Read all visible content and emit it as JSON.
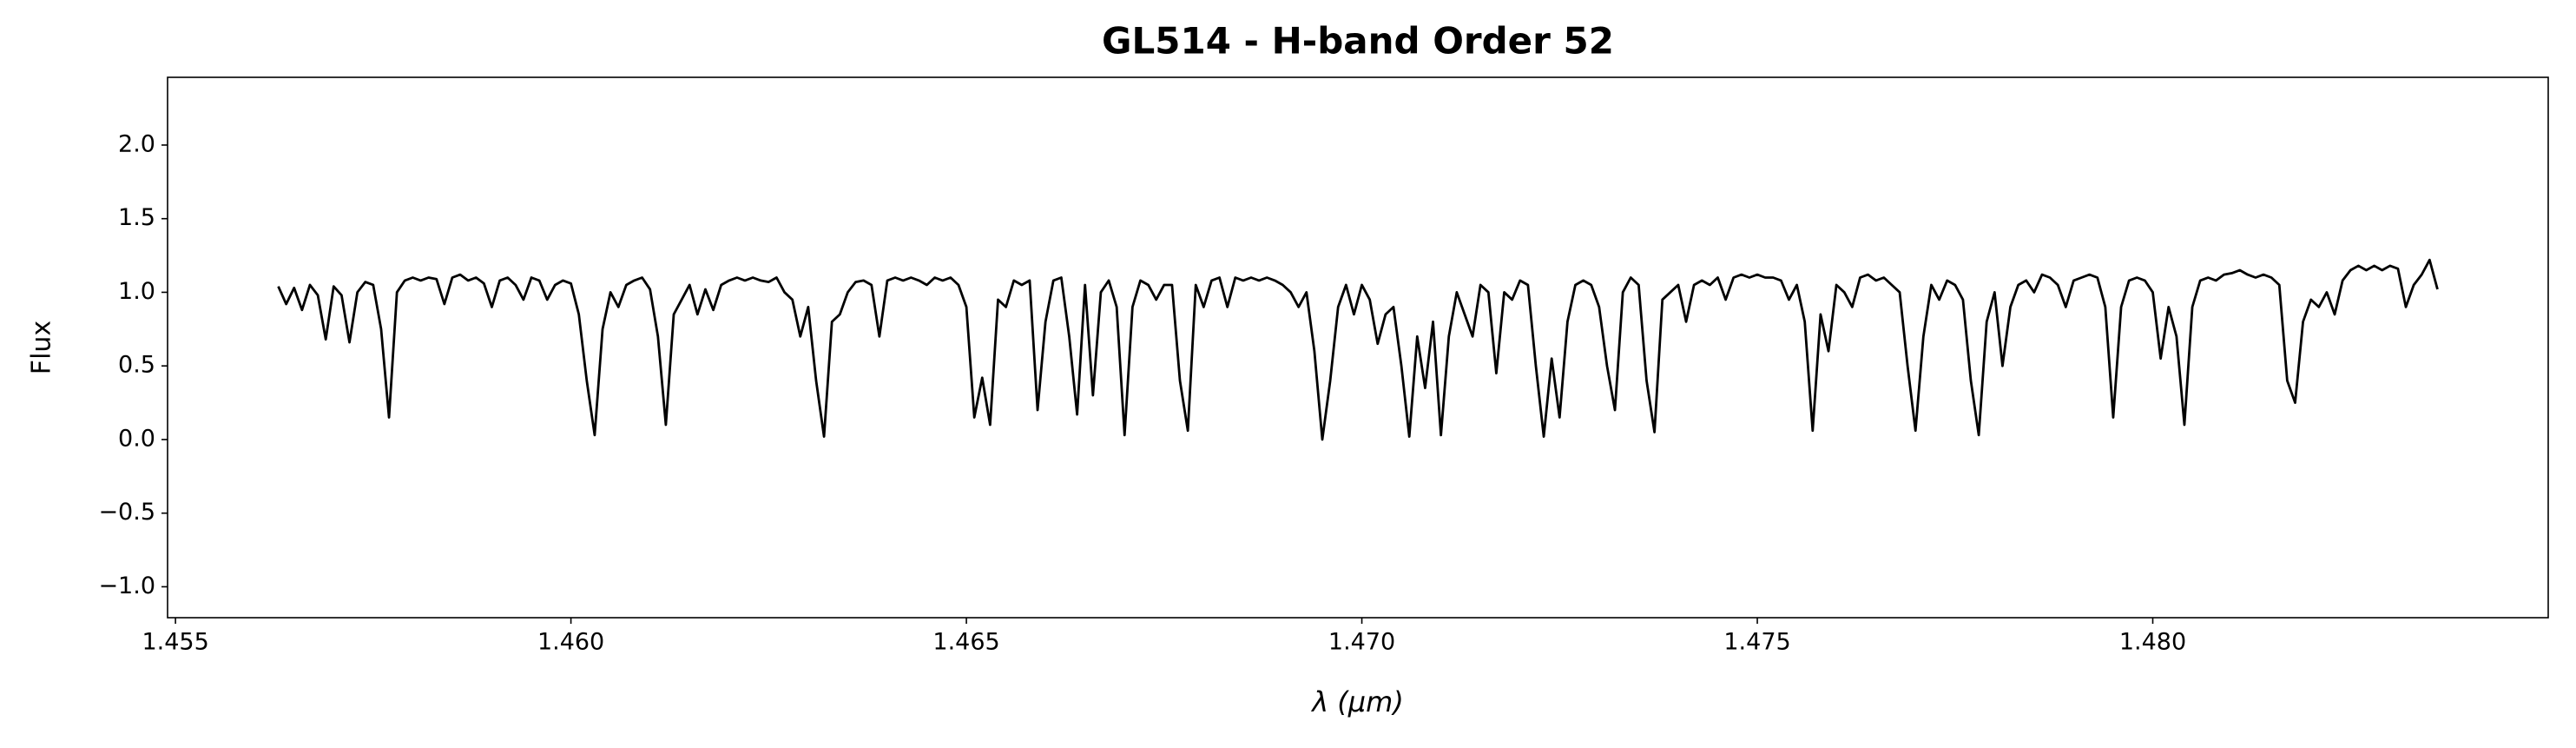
{
  "chart_data": {
    "type": "line",
    "title": "GL514 - H-band Order 52",
    "xlabel": "λ (μm)",
    "ylabel": "Flux",
    "color": "#000000",
    "grid": false,
    "xlim": [
      1.4549,
      1.485
    ],
    "ylim": [
      -1.21,
      2.46
    ],
    "xticks": [
      1.455,
      {
        "value": 1.46,
        "label": "1.460"
      },
      1.465,
      {
        "value": 1.47,
        "label": "1.470"
      },
      1.475,
      {
        "value": 1.48,
        "label": "1.480"
      }
    ],
    "yticks": [
      {
        "value": -1,
        "label": "−1.0"
      },
      {
        "value": -0.5,
        "label": "−0.5"
      },
      {
        "value": 0,
        "label": "0.0"
      },
      0.5,
      {
        "value": 1,
        "label": "1.0"
      },
      1.5,
      {
        "value": 2,
        "label": "2.0"
      }
    ],
    "x": [
      1.4563,
      1.4564,
      1.4565,
      1.4566,
      1.4567,
      1.4568,
      1.4569,
      1.457,
      1.4571,
      1.4572,
      1.4573,
      1.4574,
      1.4575,
      1.4576,
      1.4577,
      1.4578,
      1.4579,
      1.458,
      1.4581,
      1.4582,
      1.4583,
      1.4584,
      1.4585,
      1.4586,
      1.4587,
      1.4588,
      1.4589,
      1.459,
      1.4591,
      1.4592,
      1.4593,
      1.4594,
      1.4595,
      1.4596,
      1.4597,
      1.4598,
      1.4599,
      1.46,
      1.4601,
      1.4602,
      1.4603,
      1.4604,
      1.4605,
      1.4606,
      1.4607,
      1.4608,
      1.4609,
      1.461,
      1.4611,
      1.4612,
      1.4613,
      1.4614,
      1.4615,
      1.4616,
      1.4617,
      1.4618,
      1.4619,
      1.462,
      1.4621,
      1.4622,
      1.4623,
      1.4624,
      1.4625,
      1.4626,
      1.4627,
      1.4628,
      1.4629,
      1.463,
      1.4631,
      1.4632,
      1.4633,
      1.4634,
      1.4635,
      1.4636,
      1.4637,
      1.4638,
      1.4639,
      1.464,
      1.4641,
      1.4642,
      1.4643,
      1.4644,
      1.4645,
      1.4646,
      1.4647,
      1.4648,
      1.4649,
      1.465,
      1.4651,
      1.4652,
      1.4653,
      1.4654,
      1.4655,
      1.4656,
      1.4657,
      1.4658,
      1.4659,
      1.466,
      1.4661,
      1.4662,
      1.4663,
      1.4664,
      1.4665,
      1.4666,
      1.4667,
      1.4668,
      1.4669,
      1.467,
      1.4671,
      1.4672,
      1.4673,
      1.4674,
      1.4675,
      1.4676,
      1.4677,
      1.4678,
      1.4679,
      1.468,
      1.4681,
      1.4682,
      1.4683,
      1.4684,
      1.4685,
      1.4686,
      1.4687,
      1.4688,
      1.4689,
      1.469,
      1.4691,
      1.4692,
      1.4693,
      1.4694,
      1.4695,
      1.4696,
      1.4697,
      1.4698,
      1.4699,
      1.47,
      1.4701,
      1.4702,
      1.4703,
      1.4704,
      1.4705,
      1.4706,
      1.4707,
      1.4708,
      1.4709,
      1.471,
      1.4711,
      1.4712,
      1.4713,
      1.4714,
      1.4715,
      1.4716,
      1.4717,
      1.4718,
      1.4719,
      1.472,
      1.4721,
      1.4722,
      1.4723,
      1.4724,
      1.4725,
      1.4726,
      1.4727,
      1.4728,
      1.4729,
      1.473,
      1.4731,
      1.4732,
      1.4733,
      1.4734,
      1.4735,
      1.4736,
      1.4737,
      1.4738,
      1.4739,
      1.474,
      1.4741,
      1.4742,
      1.4743,
      1.4744,
      1.4745,
      1.4746,
      1.4747,
      1.4748,
      1.4749,
      1.475,
      1.4751,
      1.4752,
      1.4753,
      1.4754,
      1.4755,
      1.4756,
      1.4757,
      1.4758,
      1.4759,
      1.476,
      1.4761,
      1.4762,
      1.4763,
      1.4764,
      1.4765,
      1.4766,
      1.4767,
      1.4768,
      1.4769,
      1.477,
      1.4771,
      1.4772,
      1.4773,
      1.4774,
      1.4775,
      1.4776,
      1.4777,
      1.4778,
      1.4779,
      1.478,
      1.4781,
      1.4782,
      1.4783,
      1.4784,
      1.4785,
      1.4786,
      1.4787,
      1.4788,
      1.4789,
      1.479,
      1.4791,
      1.4792,
      1.4793,
      1.4794,
      1.4795,
      1.4796,
      1.4797,
      1.4798,
      1.4799,
      1.48,
      1.4801,
      1.4802,
      1.4803,
      1.4804,
      1.4805,
      1.4806,
      1.4807,
      1.4808,
      1.4809,
      1.481,
      1.4811,
      1.4812,
      1.4813,
      1.4814,
      1.4815,
      1.4816,
      1.4817,
      1.4818,
      1.4819,
      1.482,
      1.4821,
      1.4822,
      1.4823,
      1.4824,
      1.4825,
      1.4826,
      1.4827,
      1.4828,
      1.4829,
      1.483,
      1.4831,
      1.4832,
      1.4833,
      1.4834,
      1.4835,
      1.4836
    ],
    "values": [
      1.04,
      0.92,
      1.03,
      0.88,
      1.05,
      0.98,
      0.68,
      1.04,
      0.98,
      0.66,
      1.0,
      1.07,
      1.05,
      0.75,
      0.15,
      1.0,
      1.08,
      1.1,
      1.08,
      1.1,
      1.09,
      0.92,
      1.1,
      1.12,
      1.08,
      1.1,
      1.06,
      0.9,
      1.08,
      1.1,
      1.05,
      0.95,
      1.1,
      1.08,
      0.95,
      1.05,
      1.08,
      1.06,
      0.85,
      0.4,
      0.03,
      0.75,
      1.0,
      0.9,
      1.05,
      1.08,
      1.1,
      1.02,
      0.7,
      0.1,
      0.85,
      0.95,
      1.05,
      0.85,
      1.02,
      0.88,
      1.05,
      1.08,
      1.1,
      1.08,
      1.1,
      1.08,
      1.07,
      1.1,
      1.0,
      0.95,
      0.7,
      0.9,
      0.4,
      0.02,
      0.8,
      0.85,
      1.0,
      1.07,
      1.08,
      1.05,
      0.7,
      1.08,
      1.1,
      1.08,
      1.1,
      1.08,
      1.05,
      1.1,
      1.08,
      1.1,
      1.05,
      0.9,
      0.15,
      0.42,
      0.1,
      0.95,
      0.9,
      1.08,
      1.05,
      1.08,
      0.2,
      0.8,
      1.08,
      1.1,
      0.7,
      0.17,
      1.05,
      0.3,
      1.0,
      1.08,
      0.9,
      0.03,
      0.9,
      1.08,
      1.05,
      0.95,
      1.05,
      1.05,
      0.4,
      0.06,
      1.05,
      0.9,
      1.08,
      1.1,
      0.9,
      1.1,
      1.08,
      1.1,
      1.08,
      1.1,
      1.08,
      1.05,
      1.0,
      0.9,
      1.0,
      0.6,
      0.0,
      0.4,
      0.9,
      1.05,
      0.85,
      1.05,
      0.95,
      0.65,
      0.85,
      0.9,
      0.5,
      0.02,
      0.7,
      0.35,
      0.8,
      0.03,
      0.7,
      1.0,
      0.85,
      0.7,
      1.05,
      1.0,
      0.45,
      1.0,
      0.95,
      1.08,
      1.05,
      0.5,
      0.02,
      0.55,
      0.15,
      0.8,
      1.05,
      1.08,
      1.05,
      0.9,
      0.5,
      0.2,
      1.0,
      1.1,
      1.05,
      0.4,
      0.05,
      0.95,
      1.0,
      1.05,
      0.8,
      1.05,
      1.08,
      1.05,
      1.1,
      0.95,
      1.1,
      1.12,
      1.1,
      1.12,
      1.1,
      1.1,
      1.08,
      0.95,
      1.05,
      0.8,
      0.06,
      0.85,
      0.6,
      1.05,
      1.0,
      0.9,
      1.1,
      1.12,
      1.08,
      1.1,
      1.05,
      1.0,
      0.5,
      0.06,
      0.7,
      1.05,
      0.95,
      1.08,
      1.05,
      0.95,
      0.4,
      0.03,
      0.8,
      1.0,
      0.5,
      0.9,
      1.05,
      1.08,
      1.0,
      1.12,
      1.1,
      1.05,
      0.9,
      1.08,
      1.1,
      1.12,
      1.1,
      0.9,
      0.15,
      0.9,
      1.08,
      1.1,
      1.08,
      1.0,
      0.55,
      0.9,
      0.7,
      0.1,
      0.9,
      1.08,
      1.1,
      1.08,
      1.12,
      1.13,
      1.15,
      1.12,
      1.1,
      1.12,
      1.1,
      1.05,
      0.4,
      0.25,
      0.8,
      0.95,
      0.9,
      1.0,
      0.85,
      1.08,
      1.15,
      1.18,
      1.15,
      1.18,
      1.15,
      1.18,
      1.16,
      0.9,
      1.05,
      1.12,
      1.22,
      1.02
    ]
  }
}
